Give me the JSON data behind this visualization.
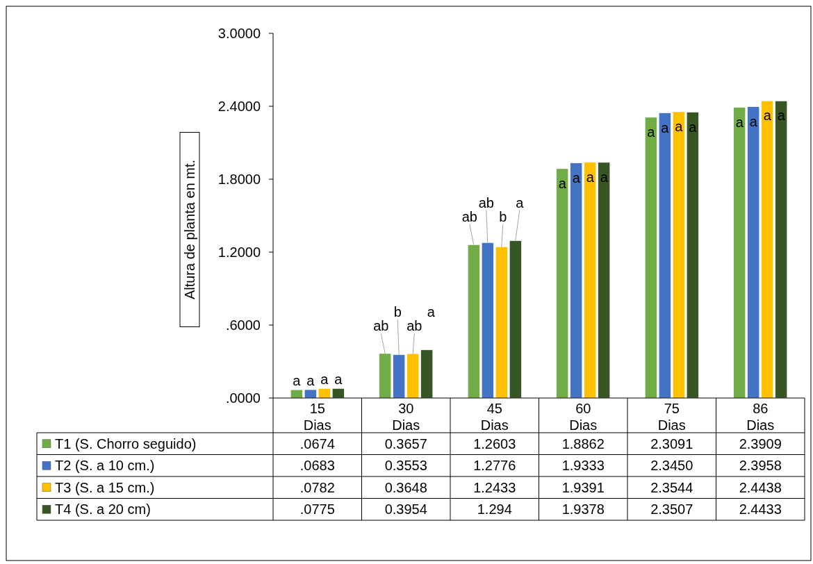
{
  "chart_data": {
    "type": "bar",
    "ylabel": "Altura de planta en mt.",
    "categories": [
      "15 Dias",
      "30 Dias",
      "45 Dias",
      "60 Dias",
      "75 Dias",
      "86 Dias"
    ],
    "series": [
      {
        "name": "T1 (S. Chorro seguido)",
        "color": "#70ad47",
        "values": [
          0.0674,
          0.3657,
          1.2603,
          1.8862,
          2.3091,
          2.3909
        ],
        "value_labels": [
          ".0674",
          "0.3657",
          "1.2603",
          "1.8862",
          "2.3091",
          "2.3909"
        ]
      },
      {
        "name": "T2 (S. a 10 cm.)",
        "color": "#4472c4",
        "values": [
          0.0683,
          0.3553,
          1.2776,
          1.9333,
          2.345,
          2.3958
        ],
        "value_labels": [
          ".0683",
          "0.3553",
          "1.2776",
          "1.9333",
          "2.3450",
          "2.3958"
        ]
      },
      {
        "name": "T3 (S. a 15 cm.)",
        "color": "#ffc000",
        "values": [
          0.0782,
          0.3648,
          1.2433,
          1.9391,
          2.3544,
          2.4438
        ],
        "value_labels": [
          ".0782",
          "0.3648",
          "1.2433",
          "1.9391",
          "2.3544",
          "2.4438"
        ]
      },
      {
        "name": "T4 (S. a 20 cm)",
        "color": "#375623",
        "values": [
          0.0775,
          0.3954,
          1.294,
          1.9378,
          2.3507,
          2.4433
        ],
        "value_labels": [
          ".0775",
          "0.3954",
          "1.294",
          "1.9378",
          "2.3507",
          "2.4433"
        ]
      }
    ],
    "ylim": [
      0,
      3
    ],
    "yticks": [
      {
        "value": 0,
        "label": ".0000"
      },
      {
        "value": 0.6,
        "label": ".6000"
      },
      {
        "value": 1.2,
        "label": "1.2000"
      },
      {
        "value": 1.8,
        "label": "1.8000"
      },
      {
        "value": 2.4,
        "label": "2.4000"
      },
      {
        "value": 3,
        "label": "3.0000"
      }
    ],
    "grid": false,
    "legend": "bottom",
    "annotations": [
      {
        "text": "a",
        "x": "15 Dias",
        "y": 0.0674
      },
      {
        "text": "a",
        "x": "15 Dias",
        "y": 0.0683
      },
      {
        "text": "a",
        "x": "15 Dias",
        "y": 0.0782
      },
      {
        "text": "a",
        "x": "15 Dias",
        "y": 0.0775
      },
      {
        "text": "ab",
        "x": "30 Dias",
        "y": 0.3657
      },
      {
        "text": "b",
        "x": "30 Dias",
        "y": 0.3553
      },
      {
        "text": "ab",
        "x": "30 Dias",
        "y": 0.3648
      },
      "a",
      {
        "text": "ab",
        "x": "45 Dias",
        "y": 1.2603
      },
      {
        "text": "ab",
        "x": "45 Dias",
        "y": 1.2776
      },
      {
        "text": "b",
        "x": "45 Dias",
        "y": 1.2433
      },
      {
        "text": "a",
        "x": "45 Dias",
        "y": 1.294
      },
      {
        "text": "a",
        "x": "60 Dias",
        "y": 1.8862
      },
      {
        "text": "a",
        "x": "60 Dias",
        "y": 1.9333
      },
      {
        "text": "a",
        "x": "60 Dias",
        "y": 1.9391
      },
      {
        "text": "a",
        "x": "60 Dias",
        "y": 1.9378
      },
      {
        "text": "a",
        "x": "75 Dias",
        "y": 2.3091
      },
      {
        "text": "a",
        "x": "75 Dias",
        "y": 2.345
      },
      {
        "text": "a",
        "x": "75 Dias",
        "y": 2.3544
      },
      {
        "text": "a",
        "x": "75 Dias",
        "y": 2.3507
      },
      {
        "text": "a",
        "x": "86 Dias",
        "y": 2.3909
      },
      {
        "text": "a",
        "x": "86 Dias",
        "y": 2.3958
      },
      {
        "text": "a",
        "x": "86 Dias",
        "y": 2.4438
      },
      {
        "text": "a",
        "x": "86 Dias",
        "y": 2.4433
      }
    ]
  }
}
